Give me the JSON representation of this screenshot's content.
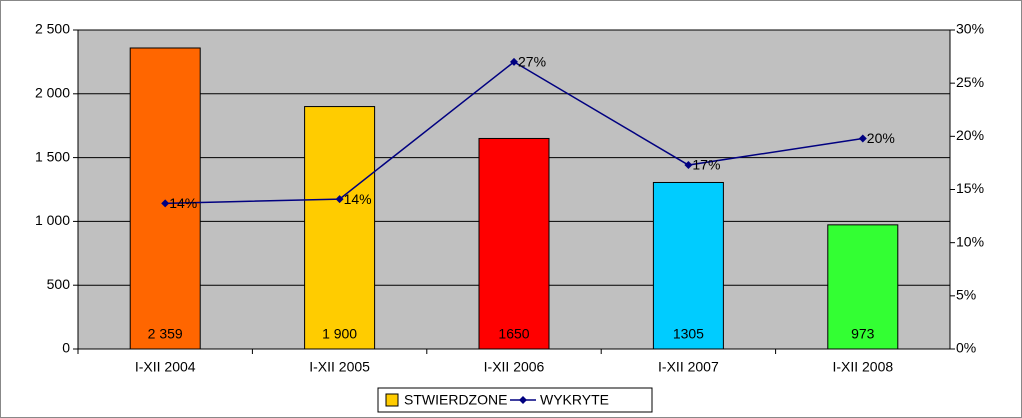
{
  "chart_data": {
    "type": "bar",
    "categories": [
      "I-XII 2004",
      "I-XII 2005",
      "I-XII 2006",
      "I-XII 2007",
      "I-XII 2008"
    ],
    "series": [
      {
        "name": "STWIERDZONE",
        "color": "#FFCC00",
        "colors": [
          "#FF6600",
          "#FFCC00",
          "#FF0000",
          "#00CCFF",
          "#33FF33"
        ],
        "values": [
          2359,
          1900,
          1650,
          1305,
          973
        ],
        "value_labels": [
          "2 359",
          "1 900",
          "1650",
          "1305",
          "973"
        ]
      },
      {
        "name": "WYKRYTE",
        "type": "line",
        "axis": "y2",
        "color": "#000080",
        "values": [
          13.7,
          14.1,
          27,
          17.3,
          19.8
        ],
        "value_labels": [
          "14%",
          "14%",
          "27%",
          "17%",
          "20%"
        ]
      }
    ],
    "ylim": [
      0,
      2500
    ],
    "yticks": [
      0,
      500,
      {
        "value": 1000,
        "label": "1 000"
      },
      {
        "value": 1500,
        "label": "1 500"
      },
      {
        "value": 2000,
        "label": "2 000"
      },
      {
        "value": 2500,
        "label": "2 500"
      }
    ],
    "y2lim": [
      0,
      30
    ],
    "y2ticks": [
      {
        "value": 0,
        "label": "0%"
      },
      {
        "value": 5,
        "label": "5%"
      },
      {
        "value": 10,
        "label": "10%"
      },
      {
        "value": 15,
        "label": "15%"
      },
      {
        "value": 20,
        "label": "20%"
      },
      {
        "value": 25,
        "label": "25%"
      },
      {
        "value": 30,
        "label": "30%"
      }
    ],
    "grid": true,
    "legend": "bottom"
  }
}
